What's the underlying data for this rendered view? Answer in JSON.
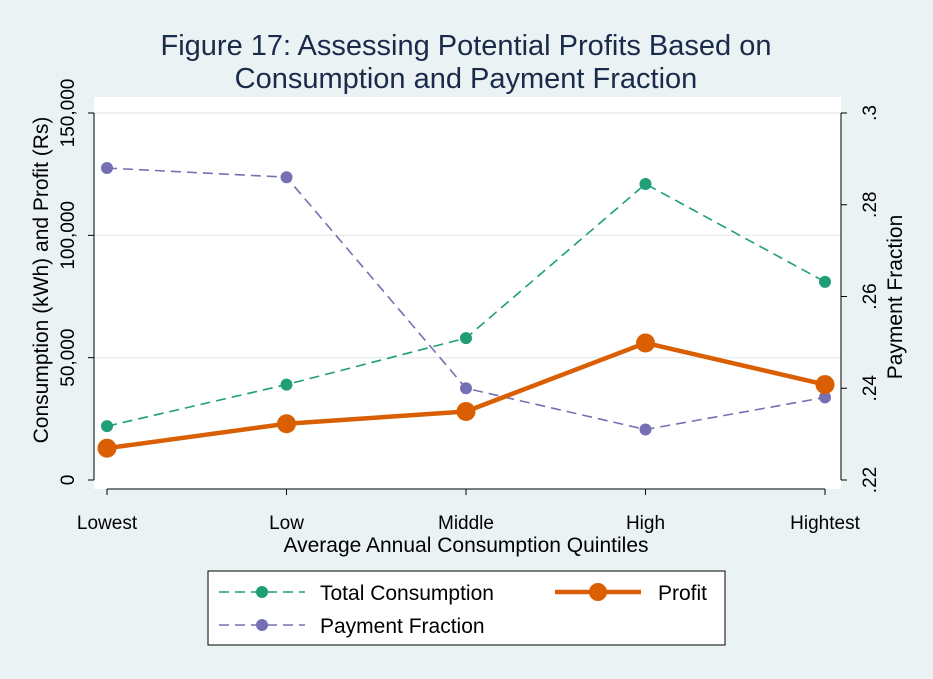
{
  "chart_data": {
    "type": "line",
    "title": "Figure 17: Assessing Potential Profits Based on Consumption and Payment Fraction",
    "title_lines": [
      "Figure 17: Assessing Potential Profits Based on",
      "Consumption and Payment Fraction"
    ],
    "xlabel": "Average Annual Consumption Quintiles",
    "ylabel": "Consumption (kWh) and Profit (Rs)",
    "y2label": "Payment Fraction",
    "categories": [
      "Lowest",
      "Low",
      "Middle",
      "High",
      "Hightest"
    ],
    "ylim": [
      0,
      150000
    ],
    "yticks": [
      0,
      50000,
      100000,
      150000
    ],
    "ytick_labels": [
      "0",
      "50,000",
      "100,000",
      "150,000"
    ],
    "y2lim": [
      0.22,
      0.3
    ],
    "y2ticks": [
      0.22,
      0.24,
      0.26,
      0.28,
      0.3
    ],
    "y2tick_labels": [
      ".22",
      ".24",
      ".26",
      ".28",
      ".3"
    ],
    "grid": true,
    "legend_position": "bottom",
    "series": [
      {
        "name": "Total Consumption",
        "axis": "left",
        "color": "#1f9e77",
        "style": "dashed",
        "values": [
          22000,
          39000,
          58000,
          121000,
          81000
        ]
      },
      {
        "name": "Profit",
        "axis": "left",
        "color": "#d95f02",
        "style": "solid",
        "values": [
          13000,
          23000,
          28000,
          56000,
          39000
        ]
      },
      {
        "name": "Payment Fraction",
        "axis": "right",
        "color": "#7570b3",
        "style": "dashed",
        "values": [
          0.288,
          0.286,
          0.24,
          0.231,
          0.238
        ]
      }
    ]
  }
}
